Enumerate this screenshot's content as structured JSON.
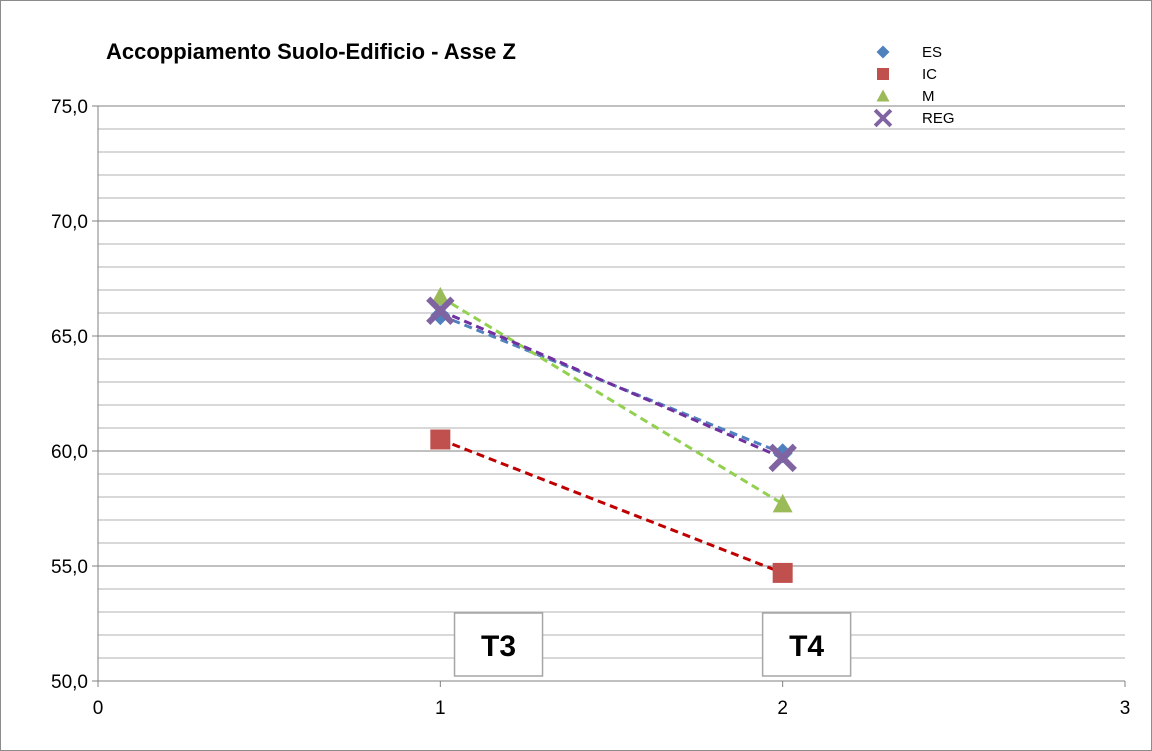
{
  "chart_data": {
    "type": "scatter",
    "title": "Accoppiamento Suolo-Edificio - Asse Z",
    "xlabel": "",
    "ylabel": "",
    "xlim": [
      0,
      3
    ],
    "ylim": [
      50,
      75
    ],
    "x_ticks": [
      "0",
      "1",
      "2",
      "3"
    ],
    "y_ticks": [
      "50,0",
      "55,0",
      "60,0",
      "65,0",
      "70,0",
      "75,0"
    ],
    "grid": true,
    "legend_position": "top-right",
    "series": [
      {
        "name": "ES",
        "marker": "diamond",
        "color": "#4f81bd",
        "trend_color": "#4f81bd",
        "x": [
          1,
          2
        ],
        "y": [
          65.9,
          59.9
        ]
      },
      {
        "name": "IC",
        "marker": "square",
        "color": "#c0504d",
        "trend_color": "#c00000",
        "x": [
          1,
          2
        ],
        "y": [
          60.5,
          54.7
        ]
      },
      {
        "name": "M",
        "marker": "triangle",
        "color": "#9bbb59",
        "trend_color": "#92d050",
        "x": [
          1,
          2
        ],
        "y": [
          66.7,
          57.7
        ]
      },
      {
        "name": "REG",
        "marker": "x",
        "color": "#8064a2",
        "trend_color": "#7030a0",
        "x": [
          1,
          2
        ],
        "y": [
          66.1,
          59.7
        ]
      }
    ],
    "annotations": [
      {
        "text": "T3",
        "x": 1.17
      },
      {
        "text": "T4",
        "x": 2.07
      }
    ]
  }
}
